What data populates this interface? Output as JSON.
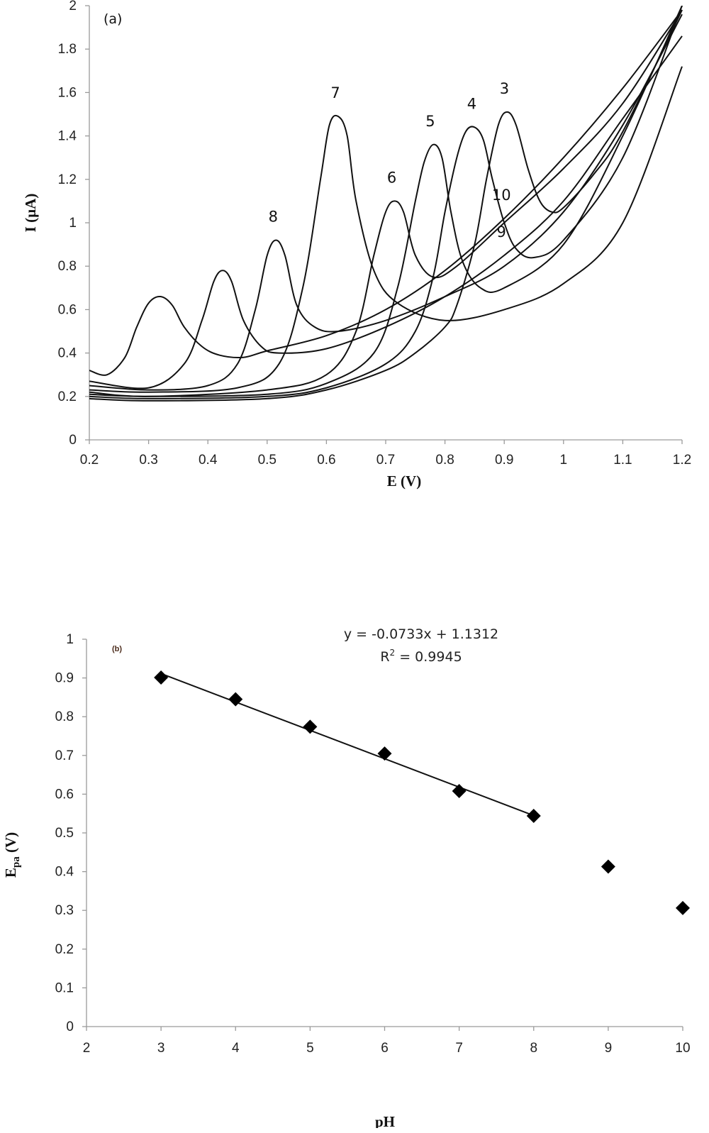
{
  "chart_data": [
    {
      "type": "line",
      "panel_label": "(a)",
      "xlabel": "E (V)",
      "ylabel": "I (µA)",
      "xlim": [
        0.2,
        1.2
      ],
      "ylim": [
        0,
        2
      ],
      "xticks": [
        "0.2",
        "0.3",
        "0.4",
        "0.5",
        "0.6",
        "0.7",
        "0.8",
        "0.9",
        "1",
        "1.1",
        "1.2"
      ],
      "yticks": [
        "0",
        "0.2",
        "0.4",
        "0.6",
        "0.8",
        "1",
        "1.2",
        "1.4",
        "1.6",
        "1.8",
        "2"
      ],
      "grid": false,
      "series": [
        {
          "name": "3",
          "x": [
            0.2,
            0.3,
            0.5,
            0.6,
            0.7,
            0.75,
            0.8,
            0.82,
            0.85,
            0.87,
            0.89,
            0.905,
            0.92,
            0.94,
            0.96,
            0.98,
            1.0,
            1.05,
            1.1,
            1.2
          ],
          "y": [
            0.19,
            0.18,
            0.19,
            0.23,
            0.32,
            0.4,
            0.52,
            0.62,
            0.9,
            1.2,
            1.45,
            1.51,
            1.45,
            1.25,
            1.1,
            1.05,
            1.07,
            1.22,
            1.42,
            1.98
          ]
        },
        {
          "name": "4",
          "x": [
            0.2,
            0.3,
            0.5,
            0.6,
            0.7,
            0.75,
            0.78,
            0.8,
            0.82,
            0.835,
            0.85,
            0.865,
            0.88,
            0.9,
            0.92,
            0.95,
            1.0,
            1.1,
            1.2
          ],
          "y": [
            0.2,
            0.19,
            0.2,
            0.24,
            0.35,
            0.5,
            0.75,
            1.05,
            1.3,
            1.42,
            1.44,
            1.38,
            1.2,
            1.0,
            0.88,
            0.84,
            0.92,
            1.3,
            2.0
          ]
        },
        {
          "name": "5",
          "x": [
            0.2,
            0.3,
            0.5,
            0.6,
            0.68,
            0.72,
            0.75,
            0.765,
            0.78,
            0.795,
            0.81,
            0.83,
            0.86,
            0.9,
            1.0,
            1.1,
            1.2
          ],
          "y": [
            0.21,
            0.2,
            0.21,
            0.26,
            0.4,
            0.7,
            1.1,
            1.28,
            1.36,
            1.3,
            1.05,
            0.82,
            0.7,
            0.7,
            0.9,
            1.4,
            2.0
          ]
        },
        {
          "name": "6",
          "x": [
            0.2,
            0.3,
            0.5,
            0.6,
            0.65,
            0.68,
            0.7,
            0.715,
            0.73,
            0.75,
            0.78,
            0.82,
            0.9,
            1.0,
            1.1,
            1.2
          ],
          "y": [
            0.22,
            0.2,
            0.23,
            0.3,
            0.5,
            0.85,
            1.05,
            1.1,
            1.05,
            0.85,
            0.75,
            0.8,
            1.0,
            1.25,
            1.55,
            1.98
          ]
        },
        {
          "name": "7",
          "x": [
            0.2,
            0.3,
            0.45,
            0.52,
            0.56,
            0.59,
            0.605,
            0.62,
            0.635,
            0.65,
            0.68,
            0.72,
            0.8,
            0.9,
            1.0,
            1.1,
            1.2
          ],
          "y": [
            0.23,
            0.22,
            0.24,
            0.35,
            0.7,
            1.2,
            1.45,
            1.49,
            1.4,
            1.1,
            0.78,
            0.63,
            0.55,
            0.6,
            0.72,
            1.0,
            1.72
          ]
        },
        {
          "name": "8",
          "x": [
            0.2,
            0.3,
            0.4,
            0.45,
            0.48,
            0.5,
            0.515,
            0.53,
            0.55,
            0.58,
            0.62,
            0.7,
            0.8,
            0.9,
            1.0,
            1.1,
            1.2
          ],
          "y": [
            0.25,
            0.23,
            0.25,
            0.35,
            0.6,
            0.85,
            0.92,
            0.85,
            0.62,
            0.52,
            0.5,
            0.55,
            0.66,
            0.8,
            1.05,
            1.45,
            1.96
          ]
        },
        {
          "name": "9",
          "x": [
            0.2,
            0.3,
            0.36,
            0.39,
            0.41,
            0.425,
            0.44,
            0.46,
            0.49,
            0.52,
            0.6,
            0.7,
            0.8,
            0.9,
            1.0,
            1.1,
            1.2
          ],
          "y": [
            0.27,
            0.24,
            0.35,
            0.55,
            0.73,
            0.78,
            0.73,
            0.55,
            0.43,
            0.4,
            0.42,
            0.52,
            0.66,
            0.85,
            1.1,
            1.48,
            1.86
          ]
        },
        {
          "name": "10",
          "x": [
            0.2,
            0.23,
            0.26,
            0.28,
            0.3,
            0.32,
            0.34,
            0.36,
            0.39,
            0.42,
            0.46,
            0.5,
            0.6,
            0.7,
            0.8,
            0.9,
            1.0,
            1.1,
            1.2
          ],
          "y": [
            0.32,
            0.3,
            0.38,
            0.52,
            0.63,
            0.66,
            0.62,
            0.52,
            0.43,
            0.39,
            0.38,
            0.41,
            0.48,
            0.6,
            0.78,
            1.02,
            1.3,
            1.62,
            1.98
          ]
        }
      ]
    },
    {
      "type": "scatter",
      "panel_label": "(b)",
      "xlabel": "pH",
      "ylabel": "Epa (V)",
      "ylabel_main": "E",
      "ylabel_sub": "pa",
      "ylabel_unit": " (V)",
      "xlim": [
        2,
        10
      ],
      "ylim": [
        0,
        1
      ],
      "xticks": [
        "2",
        "3",
        "4",
        "5",
        "6",
        "7",
        "8",
        "9",
        "10"
      ],
      "yticks": [
        "0",
        "0.1",
        "0.2",
        "0.3",
        "0.4",
        "0.5",
        "0.6",
        "0.7",
        "0.8",
        "0.9",
        "1"
      ],
      "grid": false,
      "points": {
        "x": [
          3,
          4,
          5,
          6,
          7,
          8,
          9,
          10
        ],
        "y": [
          0.901,
          0.845,
          0.774,
          0.705,
          0.608,
          0.544,
          0.413,
          0.306
        ]
      },
      "trendline": {
        "x_range": [
          3,
          8
        ],
        "slope": -0.0733,
        "intercept": 1.1312
      },
      "equation": "y = -0.0733x + 1.1312",
      "r2_prefix": "R",
      "r2_sup": "2",
      "r2_value": " = 0.9945"
    }
  ]
}
